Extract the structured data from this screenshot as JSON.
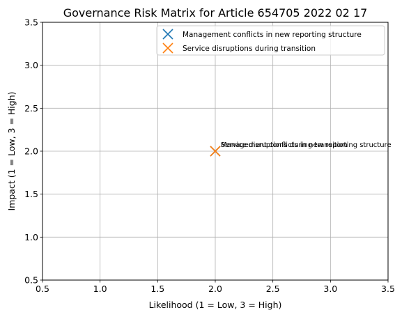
{
  "chart_data": {
    "type": "scatter",
    "title": "Governance Risk Matrix for Article 654705 2022 02 17",
    "xlabel": "Likelihood (1 = Low, 3 = High)",
    "ylabel": "Impact (1 = Low, 3 = High)",
    "xlim": [
      0.5,
      3.5
    ],
    "ylim": [
      0.5,
      3.5
    ],
    "xticks": [
      "0.5",
      "1.0",
      "1.5",
      "2.0",
      "2.5",
      "3.0",
      "3.5"
    ],
    "yticks": [
      "0.5",
      "1.0",
      "1.5",
      "2.0",
      "2.5",
      "3.0",
      "3.5"
    ],
    "grid": true,
    "legend_position": "top-right",
    "marker": "x",
    "series": [
      {
        "name": "Management conflicts in new reporting structure",
        "color": "#1f77b4",
        "points": [
          {
            "x": 2,
            "y": 2,
            "label": "Management conflicts in new reporting structure"
          }
        ]
      },
      {
        "name": "Service disruptions during transition",
        "color": "#ff7f0e",
        "points": [
          {
            "x": 2,
            "y": 2,
            "label": "Service disruptions during transition"
          }
        ]
      }
    ]
  }
}
